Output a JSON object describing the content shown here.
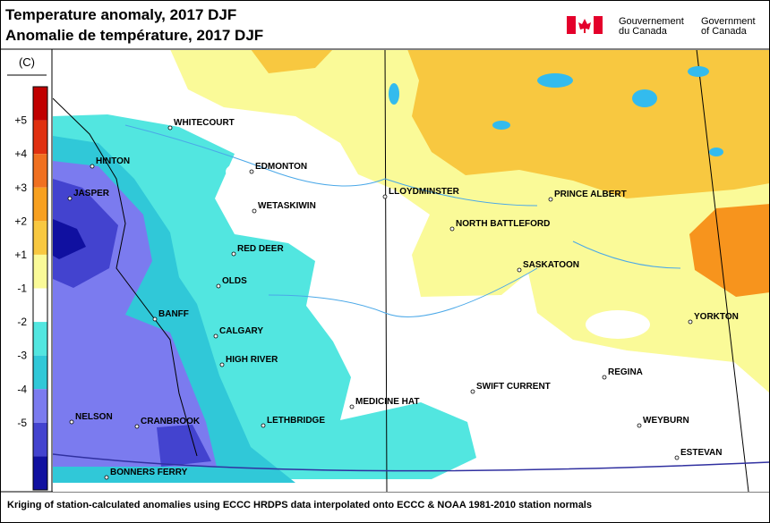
{
  "header": {
    "title": "Temperature anomaly, 2017 DJF",
    "title_fr": "Anomalie de température, 2017 DJF",
    "gov_fr": [
      "Gouvernement",
      "du Canada"
    ],
    "gov_en": [
      "Government",
      "of Canada"
    ]
  },
  "legend": {
    "unit": "(C)",
    "labels": [
      "+5",
      "+4",
      "+3",
      "+2",
      "+1",
      "-1",
      "-2",
      "-3",
      "-4",
      "-5"
    ]
  },
  "cities": [
    "WHITECOURT",
    "HINTON",
    "JASPER",
    "EDMONTON",
    "WETASKIWIN",
    "RED DEER",
    "OLDS",
    "BANFF",
    "CALGARY",
    "HIGH RIVER",
    "LLOYDMINSTER",
    "PRINCE ALBERT",
    "NORTH BATTLEFORD",
    "SASKATOON",
    "YORKTON",
    "REGINA",
    "SWIFT CURRENT",
    "MEDICINE HAT",
    "LETHBRIDGE",
    "NELSON",
    "CRANBROOK",
    "WEYBURN",
    "ESTEVAN",
    "BONNERS FERRY"
  ],
  "footer": "Kriging of station-calculated anomalies using ECCC HRDPS data interpolated onto ECCC & NOAA 1981-2010 station normals"
}
